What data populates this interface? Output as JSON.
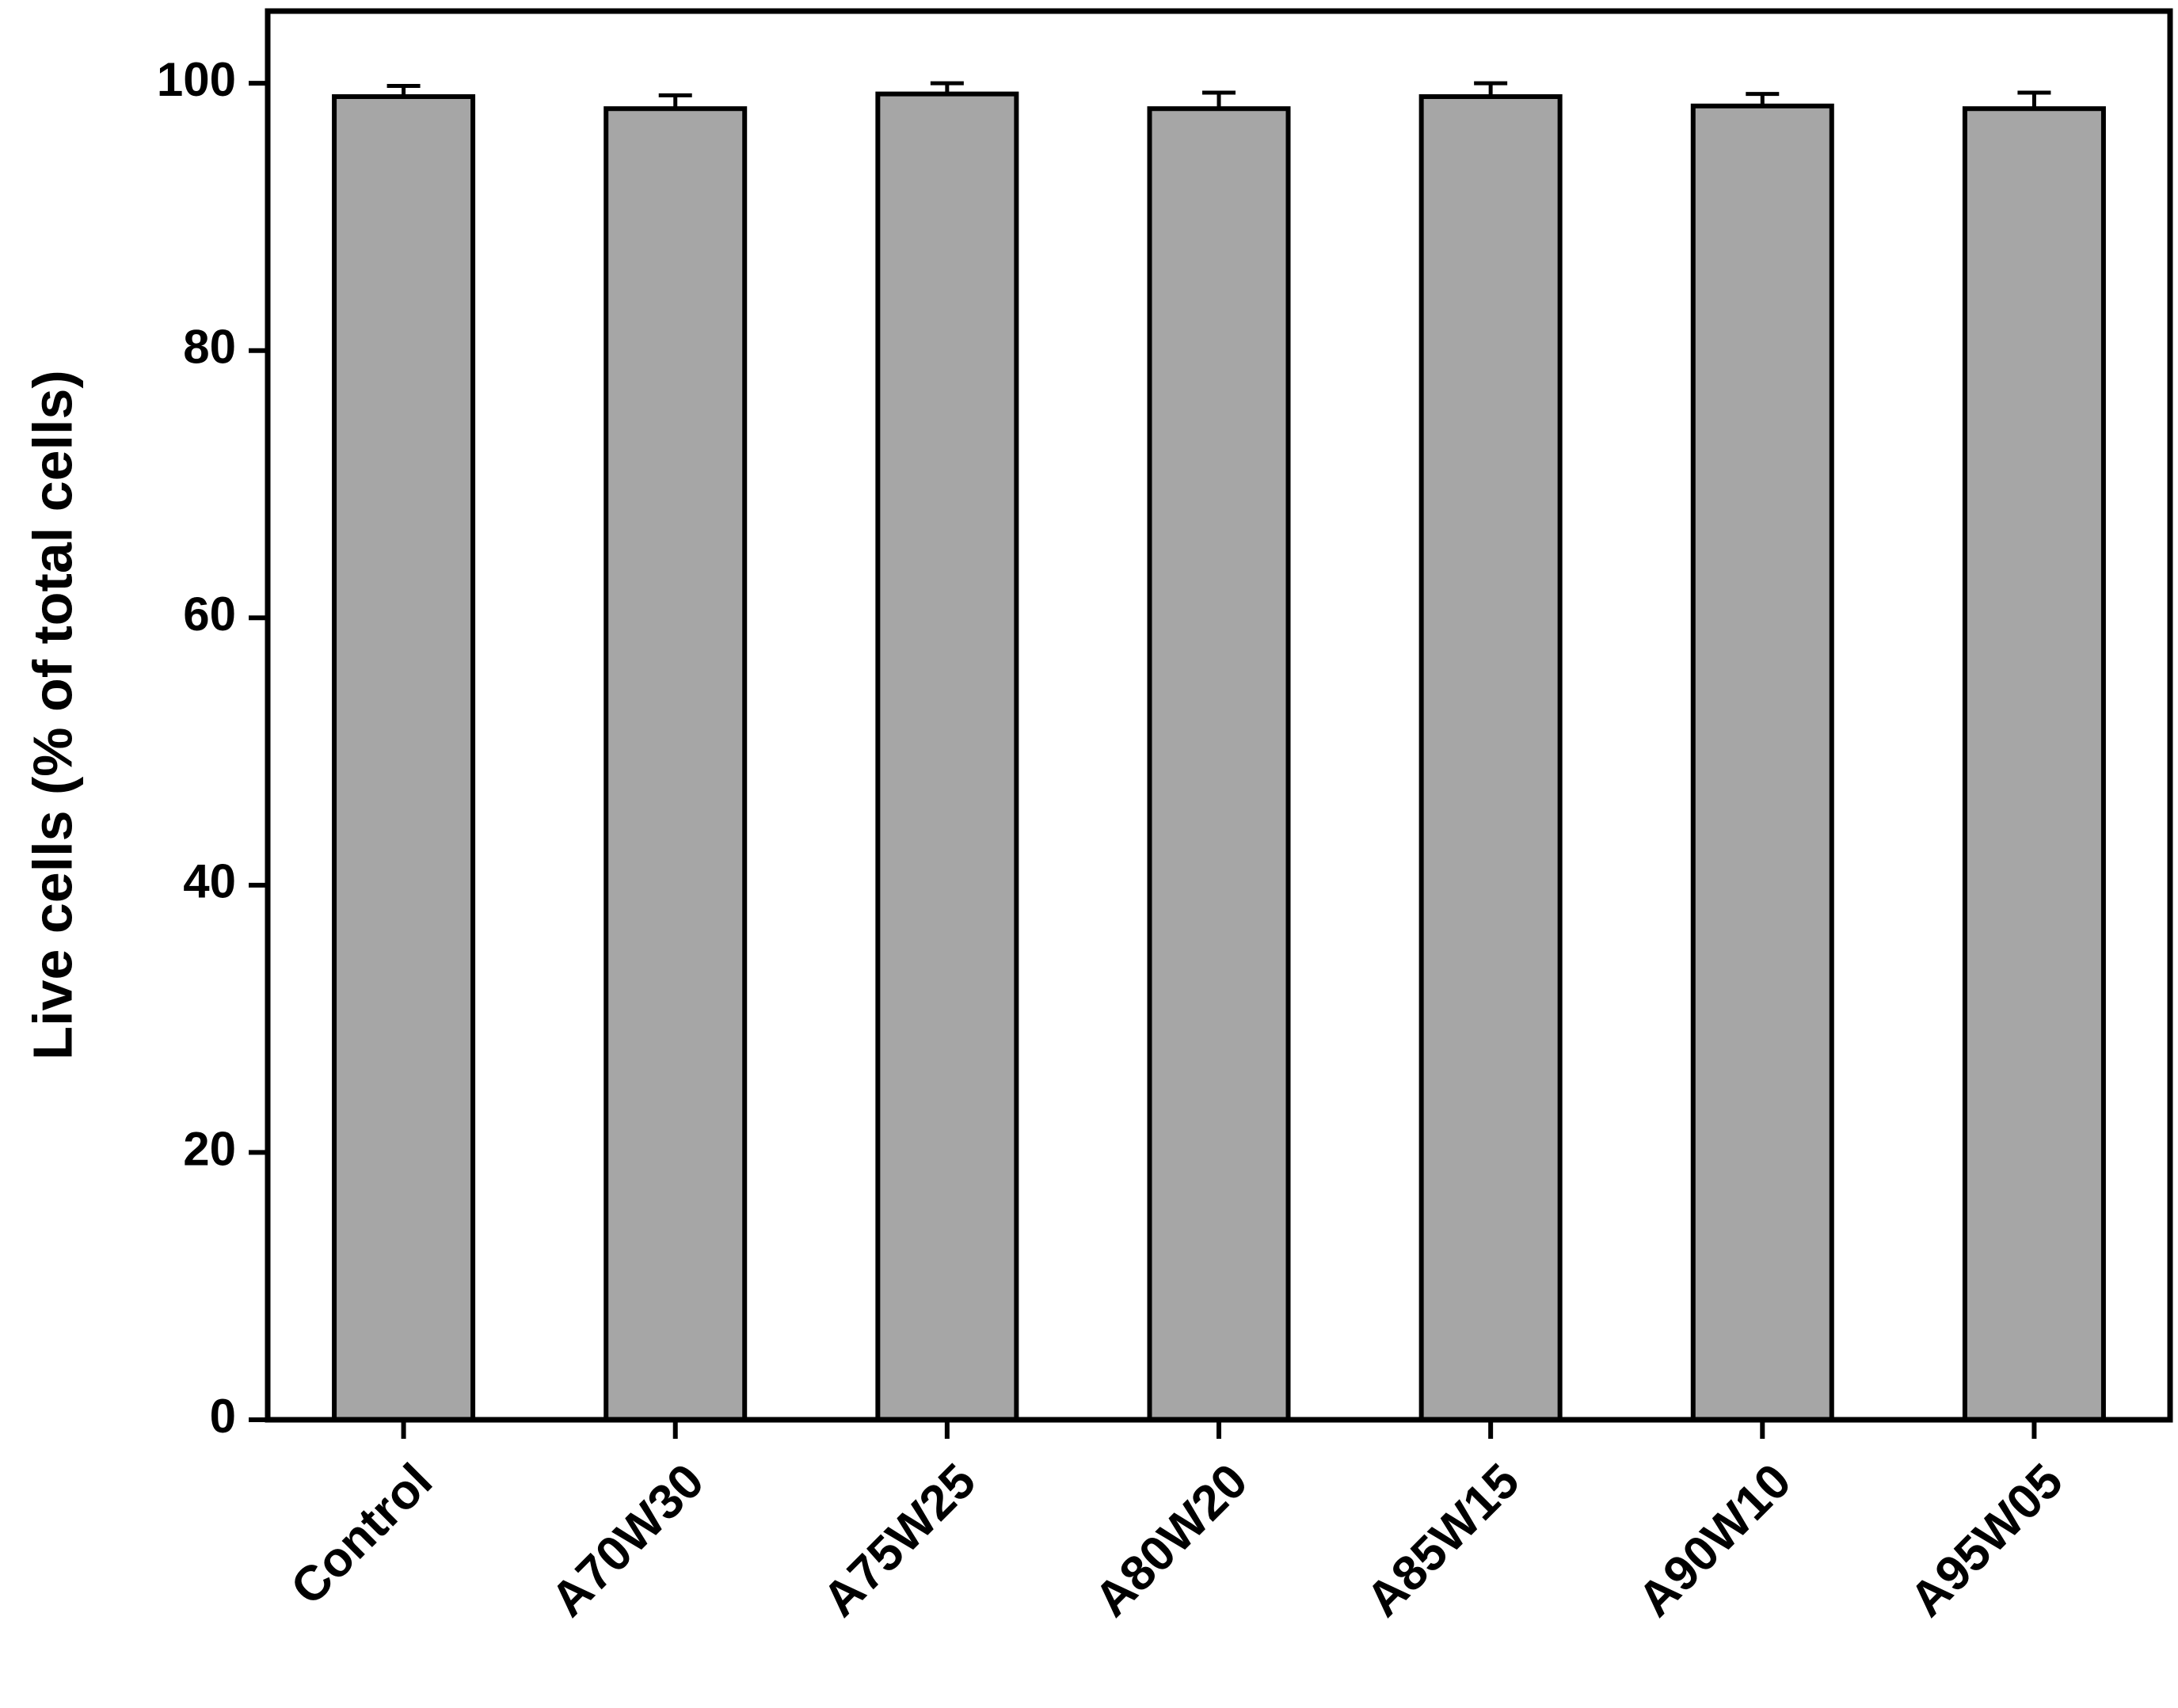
{
  "chart_data": {
    "type": "bar",
    "ylabel": "Live cells (% of total cells)",
    "categories": [
      "Control",
      "A70W30",
      "A75W25",
      "A80W20",
      "A85W15",
      "A90W10",
      "A95W05"
    ],
    "values": [
      99.0,
      98.1,
      99.2,
      98.1,
      99.0,
      98.3,
      98.1
    ],
    "errors": [
      0.8,
      1.0,
      0.8,
      1.2,
      1.0,
      0.9,
      1.2
    ],
    "color": "#a6a6a6",
    "ylim": [
      0,
      105.4
    ],
    "yticks": [
      0,
      20,
      40,
      60,
      80,
      100
    ],
    "grid": false
  }
}
